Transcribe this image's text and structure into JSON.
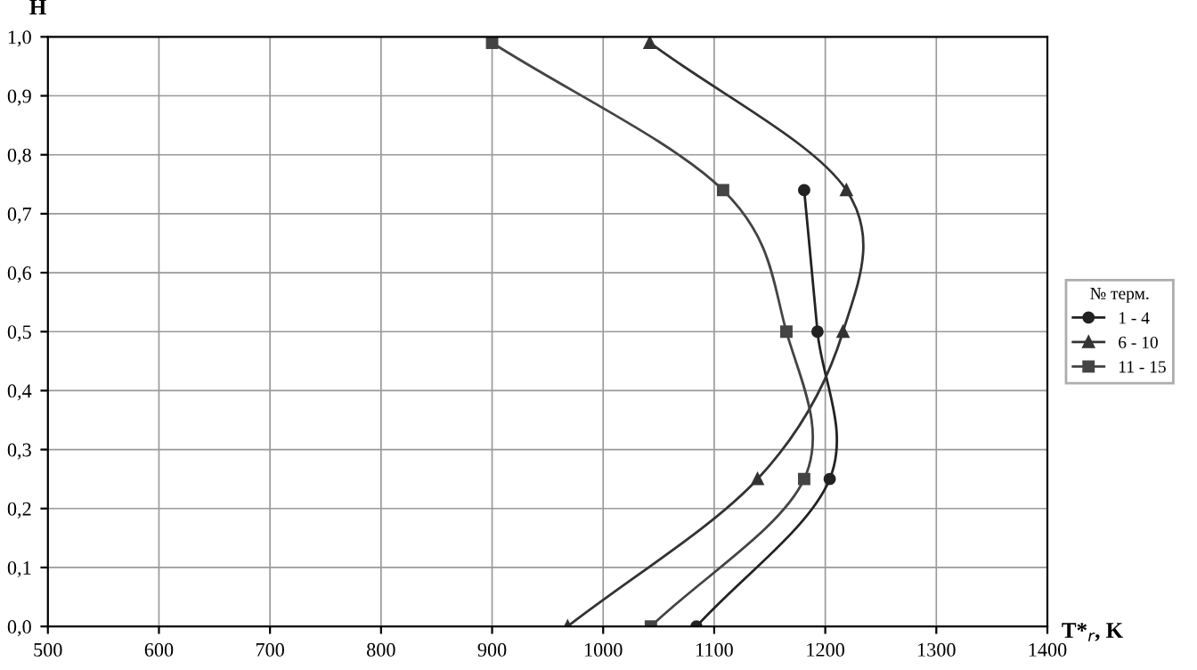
{
  "chart_data": {
    "type": "line",
    "xlabel": "T*$_{r}$, K",
    "ylabel": "H",
    "legend_title": "№ терм.",
    "legend": "right",
    "grid": true,
    "xlim": [
      500,
      1400
    ],
    "xticks": [
      500,
      600,
      700,
      800,
      900,
      1000,
      1100,
      1200,
      1300,
      1400
    ],
    "ylim": [
      0,
      1
    ],
    "yticks": [
      {
        "value": 0,
        "label": "0,0"
      },
      {
        "value": 0.1,
        "label": "0,1"
      },
      {
        "value": 0.2,
        "label": "0,2"
      },
      {
        "value": 0.3,
        "label": "0,3"
      },
      {
        "value": 0.4,
        "label": "0,4"
      },
      {
        "value": 0.5,
        "label": "0,5"
      },
      {
        "value": 0.6,
        "label": "0,6"
      },
      {
        "value": 0.7,
        "label": "0,7"
      },
      {
        "value": 0.8,
        "label": "0,8"
      },
      {
        "value": 0.9,
        "label": "0,9"
      },
      {
        "value": 1,
        "label": "1,0"
      }
    ],
    "series": [
      {
        "name": "1 - 4",
        "color": "#222222",
        "marker": "circle",
        "x": [
          1084,
          1204,
          1193,
          1181
        ],
        "values": [
          0,
          0.25,
          0.5,
          0.74
        ]
      },
      {
        "name": "6 - 10",
        "color": "#333333",
        "marker": "triangle",
        "x": [
          968,
          1139,
          1216,
          1219,
          1042
        ],
        "values": [
          0,
          0.25,
          0.5,
          0.74,
          0.99
        ]
      },
      {
        "name": "11 - 15",
        "color": "#444444",
        "marker": "square",
        "x": [
          1043,
          1181,
          1165,
          1108,
          900
        ],
        "values": [
          0,
          0.25,
          0.5,
          0.74,
          0.99
        ]
      }
    ]
  }
}
